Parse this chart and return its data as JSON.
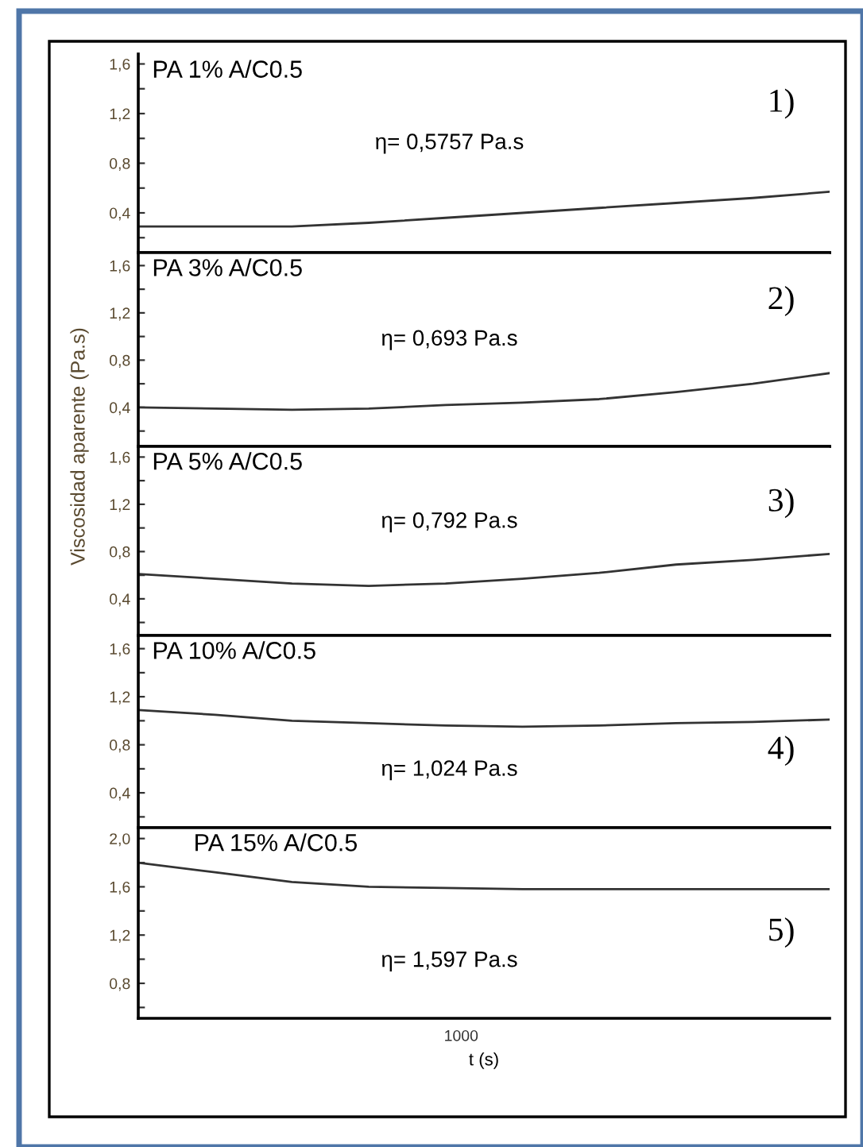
{
  "chart_data": [
    {
      "type": "line",
      "title": "PA 1% A/C0.5",
      "categories": [
        null,
        null,
        null,
        null,
        null,
        null,
        null,
        null,
        null,
        null
      ],
      "series": [
        {
          "color": "#333333",
          "values": [
            0.29,
            0.29,
            0.29,
            0.32,
            0.36,
            0.4,
            0.44,
            0.48,
            0.52,
            0.57
          ]
        }
      ],
      "ylim": [
        0.08,
        1.68
      ],
      "yticks": [
        {
          "value": 0.2,
          "label": null
        },
        {
          "value": 0.4,
          "label": "0,4"
        },
        {
          "value": 0.6,
          "label": null
        },
        {
          "value": 0.8,
          "label": "0,8"
        },
        {
          "value": 1.0,
          "label": null
        },
        {
          "value": 1.2,
          "label": "1,2"
        },
        {
          "value": 1.4,
          "label": null
        },
        {
          "value": 1.6,
          "label": "1,6"
        }
      ],
      "annotations": [
        "η= 0,5757 Pa.s",
        "1)"
      ]
    },
    {
      "type": "line",
      "title": "PA 3% A/C0.5",
      "categories": [
        null,
        null,
        null,
        null,
        null,
        null,
        null,
        null,
        null,
        null
      ],
      "series": [
        {
          "color": "#333333",
          "values": [
            0.4,
            0.39,
            0.38,
            0.39,
            0.42,
            0.44,
            0.47,
            0.53,
            0.6,
            0.69
          ]
        }
      ],
      "ylim": [
        0.07,
        1.71
      ],
      "yticks": [
        {
          "value": 0.2,
          "label": null
        },
        {
          "value": 0.4,
          "label": "0,4"
        },
        {
          "value": 0.6,
          "label": null
        },
        {
          "value": 0.8,
          "label": "0,8"
        },
        {
          "value": 1.0,
          "label": null
        },
        {
          "value": 1.2,
          "label": "1,2"
        },
        {
          "value": 1.4,
          "label": null
        },
        {
          "value": 1.6,
          "label": "1,6"
        }
      ],
      "annotations": [
        "η= 0,693 Pa.s",
        "2)"
      ]
    },
    {
      "type": "line",
      "title": "PA 5% A/C0.5",
      "ylabel": "Viscosidad aparente (Pa.s)",
      "categories": [
        null,
        null,
        null,
        null,
        null,
        null,
        null,
        null,
        null,
        null
      ],
      "series": [
        {
          "color": "#333333",
          "values": [
            0.61,
            0.57,
            0.53,
            0.51,
            0.53,
            0.57,
            0.62,
            0.69,
            0.73,
            0.78
          ]
        }
      ],
      "ylim": [
        0.09,
        1.69
      ],
      "yticks": [
        {
          "value": 0.2,
          "label": null
        },
        {
          "value": 0.4,
          "label": "0,4"
        },
        {
          "value": 0.6,
          "label": null
        },
        {
          "value": 0.8,
          "label": "0,8"
        },
        {
          "value": 1.0,
          "label": null
        },
        {
          "value": 1.2,
          "label": "1,2"
        },
        {
          "value": 1.4,
          "label": null
        },
        {
          "value": 1.6,
          "label": "1,6"
        }
      ],
      "annotations": [
        "η= 0,792 Pa.s",
        "3)"
      ]
    },
    {
      "type": "line",
      "title": "PA 10% A/C0.5",
      "categories": [
        null,
        null,
        null,
        null,
        null,
        null,
        null,
        null,
        null,
        null
      ],
      "series": [
        {
          "color": "#333333",
          "values": [
            1.09,
            1.05,
            1.0,
            0.98,
            0.96,
            0.95,
            0.96,
            0.98,
            0.99,
            1.01
          ]
        }
      ],
      "ylim": [
        0.11,
        1.71
      ],
      "yticks": [
        {
          "value": 0.2,
          "label": null
        },
        {
          "value": 0.4,
          "label": "0,4"
        },
        {
          "value": 0.6,
          "label": null
        },
        {
          "value": 0.8,
          "label": "0,8"
        },
        {
          "value": 1.0,
          "label": null
        },
        {
          "value": 1.2,
          "label": "1,2"
        },
        {
          "value": 1.4,
          "label": null
        },
        {
          "value": 1.6,
          "label": "1,6"
        }
      ],
      "annotations": [
        "η= 1,024 Pa.s",
        "4)"
      ]
    },
    {
      "type": "line",
      "title": "PA 15% A/C0.5",
      "xlabel": "t (s)",
      "categories": [
        null,
        null,
        null,
        null,
        null,
        null,
        null,
        null,
        null,
        null
      ],
      "series": [
        {
          "color": "#333333",
          "values": [
            1.8,
            1.72,
            1.64,
            1.6,
            1.59,
            1.58,
            1.58,
            1.58,
            1.58,
            1.58
          ]
        }
      ],
      "ylim": [
        0.51,
        2.09
      ],
      "yticks": [
        {
          "value": 0.6,
          "label": null
        },
        {
          "value": 0.8,
          "label": "0,8"
        },
        {
          "value": 1.0,
          "label": null
        },
        {
          "value": 1.2,
          "label": "1,2"
        },
        {
          "value": 1.4,
          "label": null
        },
        {
          "value": 1.6,
          "label": "1,6"
        },
        {
          "value": 1.8,
          "label": null
        },
        {
          "value": 2.0,
          "label": "2,0"
        }
      ],
      "annotations": [
        "η= 1,597 Pa.s",
        "5)",
        "1000"
      ]
    }
  ]
}
